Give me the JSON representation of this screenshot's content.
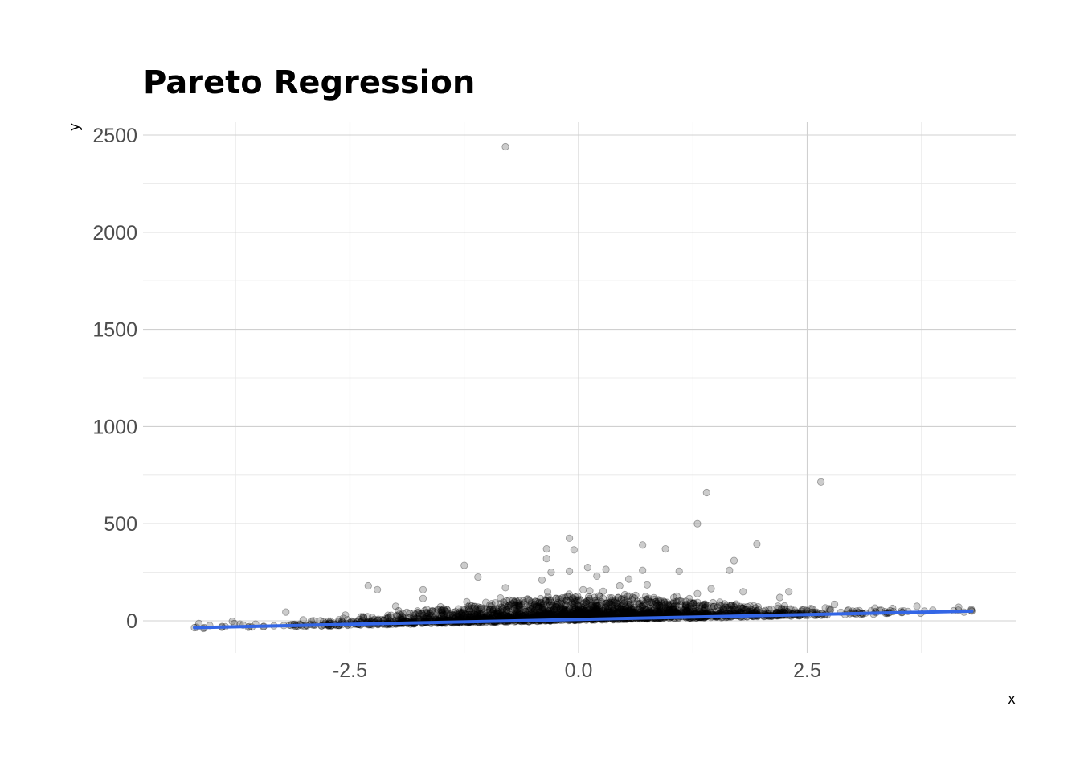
{
  "chart_data": {
    "type": "scatter",
    "title": "Pareto Regression",
    "xlabel": "x",
    "ylabel": "y",
    "xlim": [
      -4.5,
      4.5
    ],
    "ylim": [
      -60,
      2500
    ],
    "x_ticks": [
      -2.5,
      0.0,
      2.5
    ],
    "x_tick_labels": [
      "-2.5",
      "0.0",
      "2.5"
    ],
    "x_minor_ticks": [
      -3.75,
      -1.25,
      1.25,
      3.75
    ],
    "y_ticks": [
      0,
      500,
      1000,
      1500,
      2000,
      2500
    ],
    "y_tick_labels": [
      "0",
      "500",
      "1000",
      "1500",
      "2000",
      "2500"
    ],
    "y_minor_ticks": [
      250,
      750,
      1250,
      1750,
      2250
    ],
    "grid": true,
    "legend": "none",
    "colors": {
      "points": "#000000",
      "fit_line": "#3366e6",
      "grid": "#d0d0d0"
    },
    "point_alpha": 0.2,
    "fit_line": {
      "x": [
        -4.2,
        4.3
      ],
      "y": [
        -35,
        50
      ]
    },
    "notable_points": [
      {
        "x": -0.8,
        "y": 2440
      },
      {
        "x": 2.65,
        "y": 715
      },
      {
        "x": 1.4,
        "y": 660
      },
      {
        "x": 1.3,
        "y": 500
      },
      {
        "x": -0.1,
        "y": 425
      },
      {
        "x": 0.7,
        "y": 390
      },
      {
        "x": 1.95,
        "y": 395
      },
      {
        "x": 0.95,
        "y": 370
      },
      {
        "x": -0.35,
        "y": 370
      },
      {
        "x": -0.05,
        "y": 365
      },
      {
        "x": -0.35,
        "y": 320
      },
      {
        "x": 1.7,
        "y": 310
      },
      {
        "x": -1.25,
        "y": 285
      },
      {
        "x": 0.1,
        "y": 275
      },
      {
        "x": 0.7,
        "y": 260
      },
      {
        "x": 1.1,
        "y": 255
      },
      {
        "x": -0.1,
        "y": 255
      },
      {
        "x": -0.3,
        "y": 250
      },
      {
        "x": 1.65,
        "y": 260
      },
      {
        "x": 0.3,
        "y": 265
      },
      {
        "x": -1.1,
        "y": 225
      },
      {
        "x": 0.2,
        "y": 230
      },
      {
        "x": 0.55,
        "y": 215
      },
      {
        "x": -0.4,
        "y": 210
      },
      {
        "x": -2.3,
        "y": 180
      },
      {
        "x": -2.2,
        "y": 160
      },
      {
        "x": -0.8,
        "y": 170
      },
      {
        "x": 0.75,
        "y": 185
      },
      {
        "x": 1.8,
        "y": 150
      },
      {
        "x": 2.3,
        "y": 150
      },
      {
        "x": -1.7,
        "y": 160
      },
      {
        "x": 0.45,
        "y": 180
      },
      {
        "x": 1.45,
        "y": 165
      },
      {
        "x": 2.2,
        "y": 120
      },
      {
        "x": -1.7,
        "y": 115
      },
      {
        "x": 1.3,
        "y": 140
      },
      {
        "x": 0.05,
        "y": 160
      },
      {
        "x": 2.8,
        "y": 85
      },
      {
        "x": 3.7,
        "y": 75
      },
      {
        "x": -3.2,
        "y": 45
      },
      {
        "x": -2.55,
        "y": 30
      },
      {
        "x": -2.0,
        "y": 75
      },
      {
        "x": 4.3,
        "y": 50
      },
      {
        "x": -4.2,
        "y": -35
      },
      {
        "x": -3.9,
        "y": -33
      },
      {
        "x": -3.6,
        "y": -30
      }
    ],
    "point_cloud": {
      "n": 2600,
      "x_distribution": "normal(0, 1.3), clipped to [-4.2, 4.3]",
      "y_model": "fit line plus heavy-tailed positive noise"
    }
  }
}
